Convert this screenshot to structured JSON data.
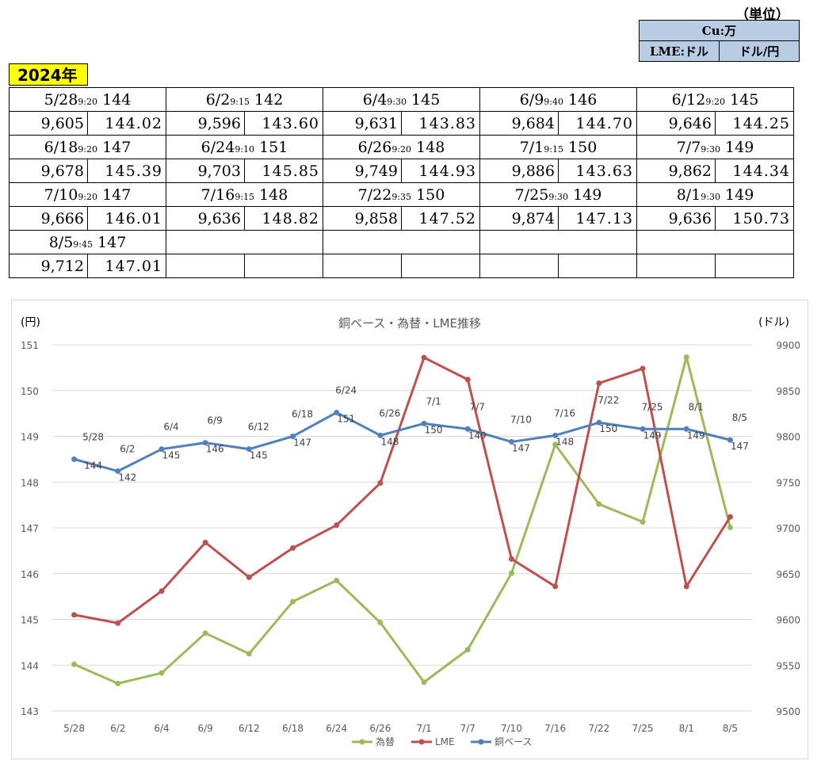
{
  "unit": {
    "caption": "（単位）",
    "row1": "Cu:万",
    "row2_left": "LME:ドル",
    "row2_right": "ドル/円"
  },
  "year_label": "2024年",
  "price_table": [
    {
      "date": "5/28",
      "time": "9:20",
      "base": "144",
      "lme": "9,605",
      "fx": "144.02"
    },
    {
      "date": "6/2",
      "time": "9:15",
      "base": "142",
      "lme": "9,596",
      "fx": "143.60"
    },
    {
      "date": "6/4",
      "time": "9:30",
      "base": "145",
      "lme": "9,631",
      "fx": "143.83"
    },
    {
      "date": "6/9",
      "time": "9:40",
      "base": "146",
      "lme": "9,684",
      "fx": "144.70"
    },
    {
      "date": "6/12",
      "time": "9:20",
      "base": "145",
      "lme": "9,646",
      "fx": "144.25"
    },
    {
      "date": "6/18",
      "time": "9:20",
      "base": "147",
      "lme": "9,678",
      "fx": "145.39"
    },
    {
      "date": "6/24",
      "time": "9:10",
      "base": "151",
      "lme": "9,703",
      "fx": "145.85"
    },
    {
      "date": "6/26",
      "time": "9:20",
      "base": "148",
      "lme": "9,749",
      "fx": "144.93"
    },
    {
      "date": "7/1",
      "time": "9:15",
      "base": "150",
      "lme": "9,886",
      "fx": "143.63"
    },
    {
      "date": "7/7",
      "time": "9:30",
      "base": "149",
      "lme": "9,862",
      "fx": "144.34"
    },
    {
      "date": "7/10",
      "time": "9:20",
      "base": "147",
      "lme": "9,666",
      "fx": "146.01"
    },
    {
      "date": "7/16",
      "time": "9:15",
      "base": "148",
      "lme": "9,636",
      "fx": "148.82"
    },
    {
      "date": "7/22",
      "time": "9:35",
      "base": "150",
      "lme": "9,858",
      "fx": "147.52"
    },
    {
      "date": "7/25",
      "time": "9:30",
      "base": "149",
      "lme": "9,874",
      "fx": "147.13"
    },
    {
      "date": "8/1",
      "time": "9:30",
      "base": "149",
      "lme": "9,636",
      "fx": "150.73"
    },
    {
      "date": "8/5",
      "time": "9:45",
      "base": "147",
      "lme": "9,712",
      "fx": "147.01"
    }
  ],
  "chart_data": {
    "type": "line",
    "title": "銅ベース・為替・LME推移",
    "left_axis_label": "(円)",
    "right_axis_label": "(ドル)",
    "categories": [
      "5/28",
      "6/2",
      "6/4",
      "6/9",
      "6/12",
      "6/18",
      "6/24",
      "6/26",
      "7/1",
      "7/7",
      "7/10",
      "7/16",
      "7/22",
      "7/25",
      "8/1",
      "8/5"
    ],
    "left_ylim": [
      143,
      151
    ],
    "left_ticks": [
      143,
      144,
      145,
      146,
      147,
      148,
      149,
      150,
      151
    ],
    "right_ylim": [
      9500,
      9900
    ],
    "right_ticks": [
      9500,
      9550,
      9600,
      9650,
      9700,
      9750,
      9800,
      9850,
      9900
    ],
    "grid": true,
    "legend_position": "bottom",
    "series": [
      {
        "name": "為替",
        "axis": "left",
        "color": "#9bbb59",
        "values": [
          144.02,
          143.6,
          143.83,
          144.7,
          144.25,
          145.39,
          145.85,
          144.93,
          143.63,
          144.34,
          146.01,
          148.82,
          147.52,
          147.13,
          150.73,
          147.01
        ]
      },
      {
        "name": "LME",
        "axis": "right",
        "color": "#c0504d",
        "values": [
          9605,
          9596,
          9631,
          9684,
          9646,
          9678,
          9703,
          9749,
          9886,
          9862,
          9666,
          9636,
          9858,
          9874,
          9636,
          9712
        ]
      },
      {
        "name": "銅ベース",
        "axis": "right",
        "color": "#4f81bd",
        "values": [
          9775,
          9762,
          9786,
          9793,
          9786,
          9800,
          9826,
          9801,
          9814,
          9808,
          9794,
          9801,
          9815,
          9808,
          9808,
          9796
        ],
        "labels": [
          "5/28\n144",
          "6/2\n142",
          "6/4\n145",
          "6/9\n146",
          "6/12\n145",
          "6/18\n147",
          "6/24\n151",
          "6/26\n148",
          "7/1\n150",
          "7/7\n149",
          "7/10\n147",
          "7/16\n148",
          "7/22\n150",
          "7/25\n149",
          "8/1\n149",
          "8/5\n147"
        ]
      }
    ]
  }
}
